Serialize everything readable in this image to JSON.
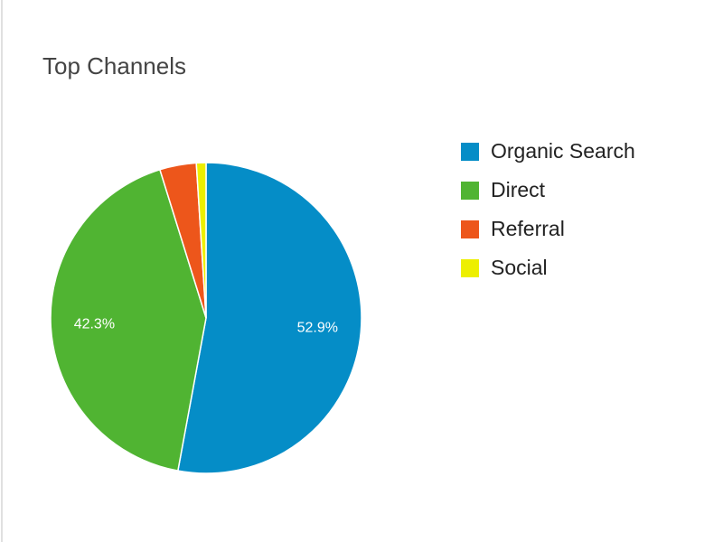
{
  "chart_data": {
    "type": "pie",
    "title": "Top Channels",
    "categories": [
      "Organic Search",
      "Direct",
      "Referral",
      "Social"
    ],
    "values": [
      52.9,
      42.3,
      3.8,
      1.0
    ],
    "value_labels": [
      "52.9%",
      "42.3%",
      null,
      null
    ],
    "colors": [
      "#058dc7",
      "#50b432",
      "#ed561b",
      "#edef00"
    ],
    "legend": "right"
  }
}
